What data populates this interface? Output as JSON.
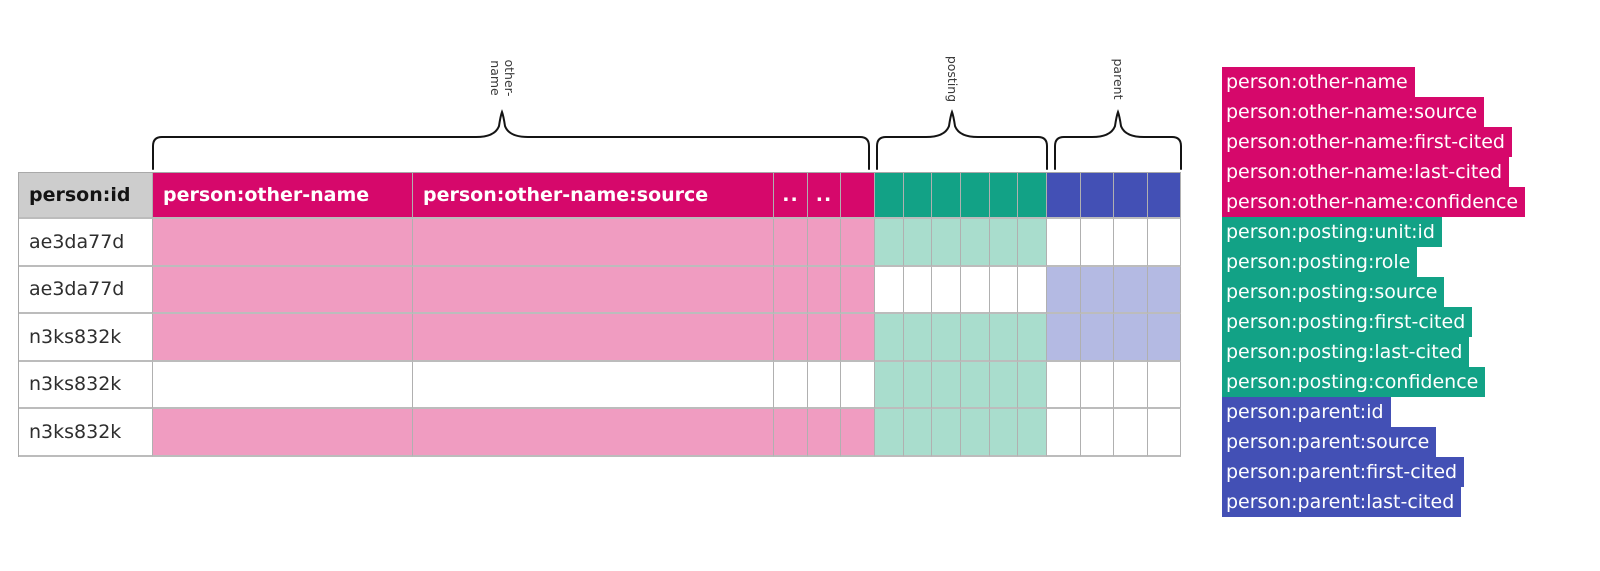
{
  "braces": [
    {
      "name": "other-name",
      "label": "other-\nname"
    },
    {
      "name": "posting",
      "label": "posting"
    },
    {
      "name": "parent",
      "label": "parent"
    }
  ],
  "table": {
    "id_header": "person:id",
    "groups": [
      {
        "name": "other-name",
        "color": "#d6086b",
        "light": "#f09cc1",
        "columns": [
          "person:other-name",
          "person:other-name:source",
          "..",
          "..",
          ""
        ]
      },
      {
        "name": "posting",
        "color": "#12a286",
        "light": "#a9ddcd",
        "columns": [
          "",
          "",
          "",
          "",
          "",
          ""
        ]
      },
      {
        "name": "parent",
        "color": "#4350b5",
        "light": "#b4bae3",
        "columns": [
          "",
          "",
          "",
          ""
        ]
      }
    ],
    "rows": [
      {
        "id": "ae3da77d",
        "filled": {
          "other-name": true,
          "posting": true,
          "parent": false
        }
      },
      {
        "id": "ae3da77d",
        "filled": {
          "other-name": true,
          "posting": false,
          "parent": true
        }
      },
      {
        "id": "n3ks832k",
        "filled": {
          "other-name": true,
          "posting": true,
          "parent": true
        }
      },
      {
        "id": "n3ks832k",
        "filled": {
          "other-name": false,
          "posting": true,
          "parent": false
        }
      },
      {
        "id": "n3ks832k",
        "filled": {
          "other-name": true,
          "posting": true,
          "parent": false
        }
      }
    ]
  },
  "legend": {
    "items": [
      {
        "label": "person:other-name",
        "group": "other-name"
      },
      {
        "label": "person:other-name:source",
        "group": "other-name"
      },
      {
        "label": "person:other-name:first-cited",
        "group": "other-name"
      },
      {
        "label": "person:other-name:last-cited",
        "group": "other-name"
      },
      {
        "label": "person:other-name:confidence",
        "group": "other-name"
      },
      {
        "label": "person:posting:unit:id",
        "group": "posting"
      },
      {
        "label": "person:posting:role",
        "group": "posting"
      },
      {
        "label": "person:posting:source",
        "group": "posting"
      },
      {
        "label": "person:posting:first-cited",
        "group": "posting"
      },
      {
        "label": "person:posting:last-cited",
        "group": "posting"
      },
      {
        "label": "person:posting:confidence",
        "group": "posting"
      },
      {
        "label": "person:parent:id",
        "group": "parent"
      },
      {
        "label": "person:parent:source",
        "group": "parent"
      },
      {
        "label": "person:parent:first-cited",
        "group": "parent"
      },
      {
        "label": "person:parent:last-cited",
        "group": "parent"
      }
    ]
  }
}
